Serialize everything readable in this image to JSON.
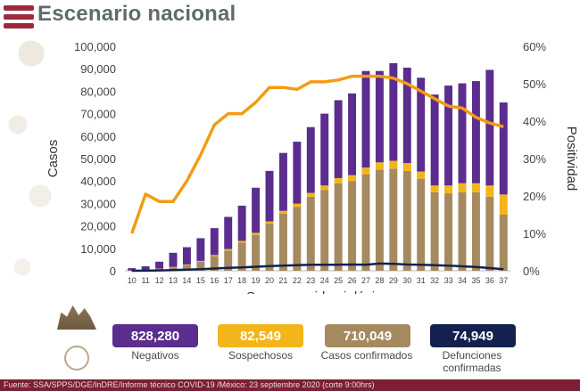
{
  "title": "Escenario nacional",
  "stats": [
    {
      "value": "828,280",
      "label": "Negativos",
      "color": "#5b2d8e"
    },
    {
      "value": "82,549",
      "label": "Sospechosos",
      "color": "#f2b51a"
    },
    {
      "value": "710,049",
      "label": "Casos confirmados",
      "color": "#a58a5f"
    },
    {
      "value": "74,949",
      "label": "Defunciones confirmadas",
      "color": "#14214f"
    }
  ],
  "footer": "Fuente: SSA/SPPS/DGE/InDRE/Informe técnico COVID-19 /México: 23 septiembre 2020 (corte 9:00hrs)",
  "chart_data": {
    "type": "bar",
    "xlabel": "Semana epidemiológica",
    "ylabel": "Casos",
    "y2label": "Positividad",
    "ylim": [
      0,
      100000
    ],
    "y2lim": [
      0,
      60
    ],
    "yticks": [
      "0",
      "10,000",
      "20,000",
      "30,000",
      "40,000",
      "50,000",
      "60,000",
      "70,000",
      "80,000",
      "90,000",
      "100,000"
    ],
    "y2ticks": [
      "0%",
      "10%",
      "20%",
      "30%",
      "40%",
      "50%",
      "60%"
    ],
    "categories": [
      "10",
      "11",
      "12",
      "13",
      "14",
      "15",
      "16",
      "17",
      "18",
      "19",
      "20",
      "21",
      "22",
      "23",
      "24",
      "25",
      "26",
      "27",
      "28",
      "29",
      "30",
      "31",
      "32",
      "33",
      "34",
      "35",
      "36",
      "37"
    ],
    "colors": {
      "confirmados": "#a58a5f",
      "sospechosos": "#f2b51a",
      "negativos": "#5b2d8e",
      "defunciones": "#14214f",
      "positividad": "#f39c12"
    },
    "series": [
      {
        "name": "Casos confirmados",
        "type": "bar",
        "stack": true,
        "values": [
          100,
          300,
          800,
          1500,
          2500,
          4000,
          6500,
          9000,
          12500,
          16000,
          21000,
          25500,
          28500,
          33000,
          36000,
          39000,
          40000,
          43000,
          45000,
          45500,
          44500,
          41000,
          35000,
          34500,
          35000,
          35000,
          33000,
          25000
        ]
      },
      {
        "name": "Sospechosos",
        "type": "bar",
        "stack": true,
        "values": [
          50,
          100,
          150,
          200,
          300,
          400,
          500,
          700,
          800,
          900,
          1000,
          1200,
          1400,
          1700,
          2000,
          2300,
          2600,
          3000,
          3300,
          3500,
          3500,
          3200,
          3000,
          3500,
          4000,
          4000,
          5000,
          9000
        ]
      },
      {
        "name": "Negativos",
        "type": "bar",
        "stack": true,
        "values": [
          1000,
          1600,
          3100,
          6300,
          7700,
          10100,
          12000,
          14300,
          15700,
          20100,
          22500,
          25800,
          27600,
          29300,
          32000,
          34700,
          36400,
          43000,
          40700,
          43500,
          42500,
          41800,
          40500,
          44500,
          44500,
          45500,
          51500,
          41000
        ]
      },
      {
        "name": "Defunciones confirmadas",
        "type": "line",
        "values": [
          0,
          50,
          150,
          300,
          500,
          700,
          1000,
          1300,
          1500,
          1800,
          2100,
          2300,
          2500,
          2700,
          2700,
          2700,
          2800,
          2700,
          3200,
          3100,
          2800,
          2700,
          2500,
          2300,
          2000,
          1700,
          1200,
          700
        ]
      },
      {
        "name": "Positividad",
        "type": "line",
        "axis": "right",
        "values": [
          10,
          20.5,
          18.5,
          18.5,
          24,
          31,
          39,
          42,
          42,
          45,
          49,
          49,
          48.5,
          50.5,
          50.5,
          51,
          52,
          52,
          52,
          51.5,
          50,
          48,
          46,
          44,
          43.5,
          41,
          39.5,
          38.5
        ]
      }
    ]
  }
}
